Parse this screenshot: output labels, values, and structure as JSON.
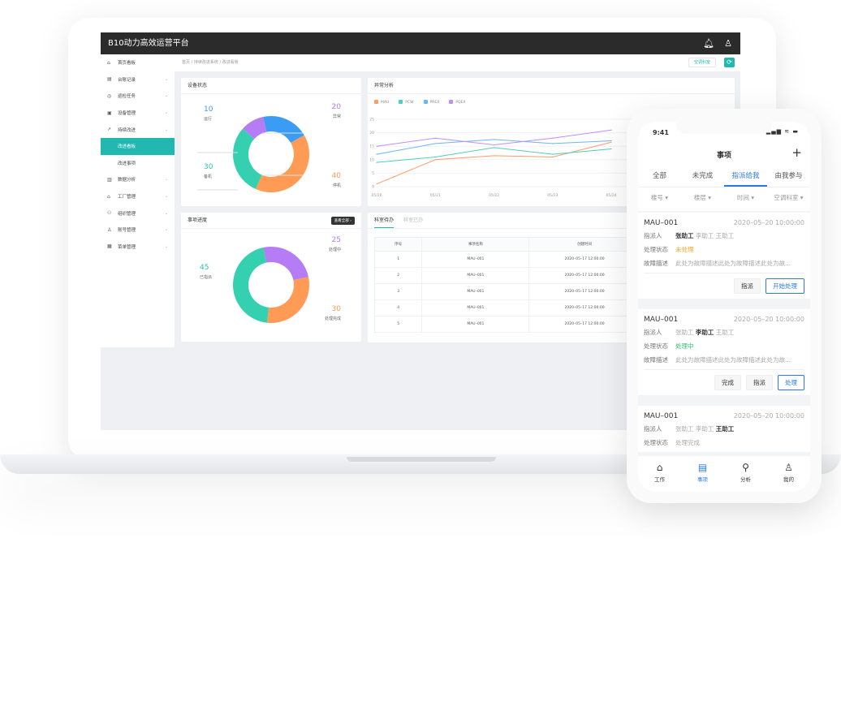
{
  "app": {
    "title": "B10动力高效运营平台",
    "icons": [
      "bell-icon",
      "user-icon"
    ]
  },
  "sidebar": {
    "items": [
      {
        "label": "首页看板",
        "icon": "⌂"
      },
      {
        "label": "台账记录",
        "icon": "▤",
        "chev": true
      },
      {
        "label": "巡检任务",
        "icon": "◎",
        "chev": true
      },
      {
        "label": "设备管理",
        "icon": "▣",
        "chev": true
      },
      {
        "label": "持续改进",
        "icon": "↗",
        "chev": true
      },
      {
        "label": "改进看板",
        "sub": true,
        "active": true
      },
      {
        "label": "改进事项",
        "sub": true
      },
      {
        "label": "数据分析",
        "icon": "▥",
        "chev": true
      },
      {
        "label": "工厂管理",
        "icon": "⌂",
        "chev": true
      },
      {
        "label": "组织管理",
        "icon": "⚇",
        "chev": true
      },
      {
        "label": "账号管理",
        "icon": "♙",
        "chev": true
      },
      {
        "label": "菜单管理",
        "icon": "▦",
        "chev": true
      }
    ]
  },
  "breadcrumb": "首页 / 持续改进系统 / 改进看板",
  "header": {
    "dept_button": "空调科室"
  },
  "device_status": {
    "title": "设备状态",
    "segments": [
      {
        "label": "异常",
        "value": 20,
        "color": "#3b9cf5"
      },
      {
        "label": "停机",
        "value": 40,
        "color": "#ff9b55"
      },
      {
        "label": "备机",
        "value": 30,
        "color": "#35d0b0"
      },
      {
        "label": "运行",
        "value": 10,
        "color": "#b67cf5"
      }
    ]
  },
  "progress": {
    "title": "事项进度",
    "view_all": "查看全部 ›",
    "segments": [
      {
        "label": "处理中",
        "value": 25,
        "color": "#b67cf5"
      },
      {
        "label": "处理完成",
        "value": 30,
        "color": "#ff9b55"
      },
      {
        "label": "已指派",
        "value": 45,
        "color": "#35d0b0"
      }
    ]
  },
  "chart_data": {
    "type": "line",
    "title": "异常分析",
    "categories": [
      "05/20",
      "05/21",
      "05/22",
      "05/23",
      "05/24"
    ],
    "ylim": [
      0,
      25
    ],
    "yticks": [
      0,
      5,
      10,
      15,
      20,
      25
    ],
    "grid": true,
    "legend": "top-left",
    "series": [
      {
        "name": "MAU",
        "color": "#ff9b6a",
        "values": [
          1,
          10,
          11.5,
          11,
          16.5
        ]
      },
      {
        "name": "PCW",
        "color": "#4fcdbf",
        "values": [
          9,
          11,
          14.5,
          12,
          14
        ]
      },
      {
        "name": "PREX",
        "color": "#6bb5ff",
        "values": [
          12,
          16,
          17.5,
          16,
          17
        ]
      },
      {
        "name": "PQEX",
        "color": "#c28cff",
        "values": [
          15,
          18,
          15.5,
          18,
          21
        ]
      }
    ]
  },
  "table": {
    "tabs": [
      "科室待办",
      "科室已办"
    ],
    "columns": [
      "序号",
      "事项名称",
      "创建时间"
    ],
    "rows": [
      [
        "1",
        "MAU–001",
        "2020–05–17 12:00:00"
      ],
      [
        "2",
        "MAU–001",
        "2020–05–17 12:00:00"
      ],
      [
        "3",
        "MAU–001",
        "2020–05–17 12:00:00"
      ],
      [
        "4",
        "MAU–001",
        "2020–05–17 12:00:00"
      ],
      [
        "5",
        "MAU–001",
        "2020–05–17 12:00:00"
      ]
    ]
  },
  "phone": {
    "time": "9:41",
    "title": "事项",
    "tabs": [
      "全部",
      "未完成",
      "指派给我",
      "由我参与"
    ],
    "active_tab": 2,
    "filters": [
      "楼号 ▾",
      "楼层 ▾",
      "时间 ▾",
      "空调科室 ▾"
    ],
    "labels": {
      "assignee": "指派人",
      "status": "处理状态",
      "desc": "故障描述"
    },
    "cards": [
      {
        "id": "MAU–001",
        "time": "2020–05–20 10:00:00",
        "people": [
          "张助工",
          "李助工",
          "王助工"
        ],
        "bold": 0,
        "status": "未处理",
        "status_color": "#f5a623",
        "desc": "此处为故障描述此处为故障描述此处为故...",
        "buttons": [
          "指派",
          "开始处理"
        ]
      },
      {
        "id": "MAU–001",
        "time": "2020–05–20 10:00:00",
        "people": [
          "张助工",
          "李助工",
          "王助工"
        ],
        "bold": 1,
        "status": "处理中",
        "status_color": "#2fbf71",
        "desc": "此处为故障描述此处为故障描述此处为故...",
        "buttons": [
          "完成",
          "指派",
          "处理"
        ]
      },
      {
        "id": "MAU–001",
        "time": "2020–05–20 10:00:00",
        "people": [
          "张助工",
          "李助工",
          "王助工"
        ],
        "bold": 2,
        "status": "处理完成",
        "status_color": "#aaaaaa"
      }
    ],
    "tabbar": [
      {
        "label": "工作",
        "icon": "⌂"
      },
      {
        "label": "事项",
        "icon": "▤",
        "active": true
      },
      {
        "label": "分析",
        "icon": "⚲"
      },
      {
        "label": "我的",
        "icon": "♙"
      }
    ]
  }
}
